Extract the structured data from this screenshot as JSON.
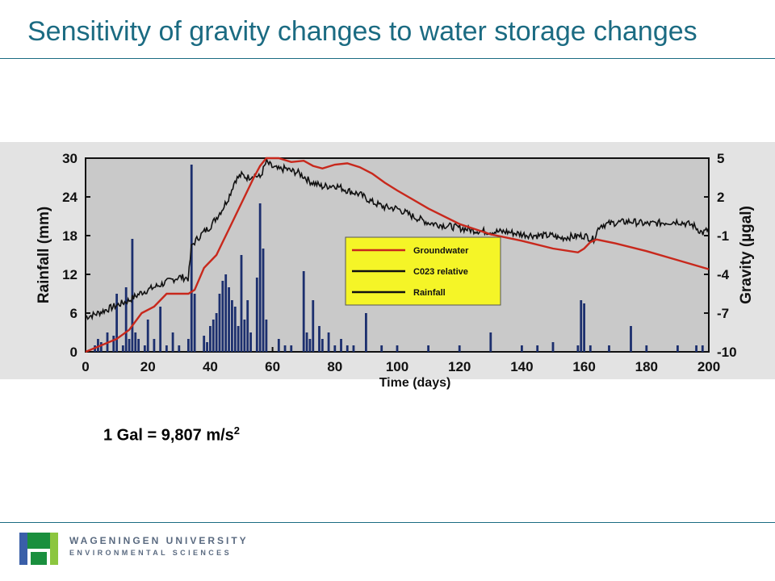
{
  "title": "Sensitivity of gravity changes to water storage changes",
  "formula": {
    "text": "1 Gal = 9,807 m/s",
    "superscript": "2"
  },
  "logo": {
    "line1": "WAGENINGEN UNIVERSITY",
    "line2": "ENVIRONMENTAL SCIENCES"
  },
  "colors": {
    "title": "#1b6b82",
    "groundwater": "#c8281c",
    "gravity": "#111111",
    "rainfall": "#1c2f6e",
    "legend_bg": "#f5f527",
    "plot_bg": "#c9c9c9"
  },
  "chart_data": {
    "type": "line",
    "xlabel": "Time (days)",
    "ylabel_left": "Rainfall (mm)",
    "ylabel_right": "Gravity (µgal)",
    "xlim": [
      0,
      200
    ],
    "ylim_left": [
      0,
      30
    ],
    "ylim_right": [
      -10,
      5
    ],
    "x_ticks": [
      0,
      20,
      40,
      60,
      80,
      100,
      120,
      140,
      160,
      180,
      200
    ],
    "y_left_ticks": [
      0,
      6,
      12,
      18,
      24,
      30
    ],
    "y_right_ticks": [
      -10,
      -7,
      -4,
      -1,
      2,
      5
    ],
    "grid": false,
    "legend": {
      "position": "center",
      "entries": [
        "Groundwater",
        "C023 relative",
        "Rainfall"
      ]
    },
    "series": [
      {
        "name": "Groundwater",
        "axis": "right",
        "x": [
          0,
          5,
          10,
          14,
          18,
          22,
          26,
          30,
          33,
          35,
          38,
          40,
          42,
          44,
          46,
          48,
          50,
          52,
          54,
          56,
          58,
          62,
          66,
          70,
          73,
          76,
          80,
          84,
          88,
          92,
          96,
          100,
          110,
          120,
          130,
          140,
          150,
          158,
          160,
          162,
          164,
          170,
          180,
          190,
          200
        ],
        "y": [
          -10,
          -9.5,
          -9,
          -8.3,
          -7,
          -6.5,
          -5.5,
          -5.5,
          -5.5,
          -5.2,
          -3.5,
          -3,
          -2.5,
          -1.5,
          -0.5,
          0.5,
          1.5,
          2.5,
          3.5,
          4.4,
          5,
          5,
          4.7,
          4.8,
          4.4,
          4.2,
          4.5,
          4.6,
          4.3,
          3.8,
          3.1,
          2.5,
          1.1,
          -0.1,
          -0.9,
          -1.4,
          -2.0,
          -2.3,
          -2.0,
          -1.5,
          -1.3,
          -1.6,
          -2.2,
          -2.9,
          -3.6
        ]
      },
      {
        "name": "C023 relative",
        "axis": "right",
        "x": [
          0,
          3,
          6,
          10,
          14,
          18,
          22,
          26,
          30,
          33,
          34,
          36,
          38,
          40,
          42,
          44,
          46,
          48,
          50,
          52,
          54,
          56,
          58,
          60,
          62,
          64,
          66,
          68,
          70,
          72,
          74,
          76,
          80,
          84,
          88,
          92,
          96,
          100,
          105,
          110,
          115,
          120,
          125,
          130,
          135,
          140,
          145,
          150,
          152,
          155,
          160,
          163,
          165,
          170,
          175,
          180,
          185,
          190,
          195,
          198,
          200
        ],
        "y": [
          -7.3,
          -7.1,
          -6.8,
          -6.4,
          -6.0,
          -5.4,
          -5.0,
          -4.6,
          -4.2,
          -4.3,
          -1.8,
          -1.2,
          -0.7,
          -0.3,
          0.4,
          1.1,
          2.0,
          3.3,
          3.7,
          3.5,
          3.7,
          3.5,
          4.7,
          4.3,
          4.1,
          4.2,
          4.0,
          3.9,
          3.6,
          3.2,
          3.0,
          2.8,
          2.9,
          2.5,
          2.2,
          1.6,
          1.2,
          1.1,
          0.5,
          0.0,
          -0.2,
          -0.4,
          -0.6,
          -0.7,
          -0.7,
          -0.9,
          -1.0,
          -1.0,
          -1.2,
          -1.1,
          -1.0,
          -1.3,
          -0.2,
          0.0,
          0.1,
          -0.1,
          0.0,
          0.1,
          -0.2,
          -0.8,
          -0.5
        ]
      },
      {
        "name": "Rainfall",
        "axis": "left",
        "type": "bar",
        "x": [
          3,
          4,
          5,
          7,
          9,
          10,
          12,
          13,
          14,
          15,
          16,
          17,
          19,
          20,
          22,
          24,
          26,
          28,
          30,
          33,
          34,
          35,
          38,
          39,
          40,
          41,
          42,
          43,
          44,
          45,
          46,
          47,
          48,
          49,
          50,
          51,
          52,
          53,
          55,
          56,
          57,
          58,
          62,
          64,
          66,
          70,
          71,
          72,
          73,
          75,
          76,
          78,
          80,
          82,
          84,
          86,
          90,
          95,
          100,
          110,
          120,
          130,
          140,
          145,
          150,
          158,
          159,
          160,
          162,
          168,
          175,
          180,
          190,
          196,
          198
        ],
        "y": [
          1,
          2,
          1.5,
          3,
          2.5,
          9,
          1,
          10,
          2,
          17.5,
          3,
          2,
          1,
          5,
          2,
          7,
          1,
          3,
          1,
          2,
          29,
          9,
          2.5,
          1.5,
          4,
          5,
          6,
          9,
          11,
          12,
          10,
          8,
          7,
          4,
          15,
          5,
          8,
          3,
          11.5,
          23,
          16,
          5,
          2,
          1,
          1,
          12.5,
          3,
          2,
          8,
          4,
          2,
          3,
          1,
          2,
          1,
          1,
          6,
          1,
          1,
          1,
          1,
          3,
          1,
          1,
          1.5,
          1,
          8,
          7.5,
          1,
          1,
          4,
          1,
          1,
          1,
          1
        ]
      }
    ]
  }
}
